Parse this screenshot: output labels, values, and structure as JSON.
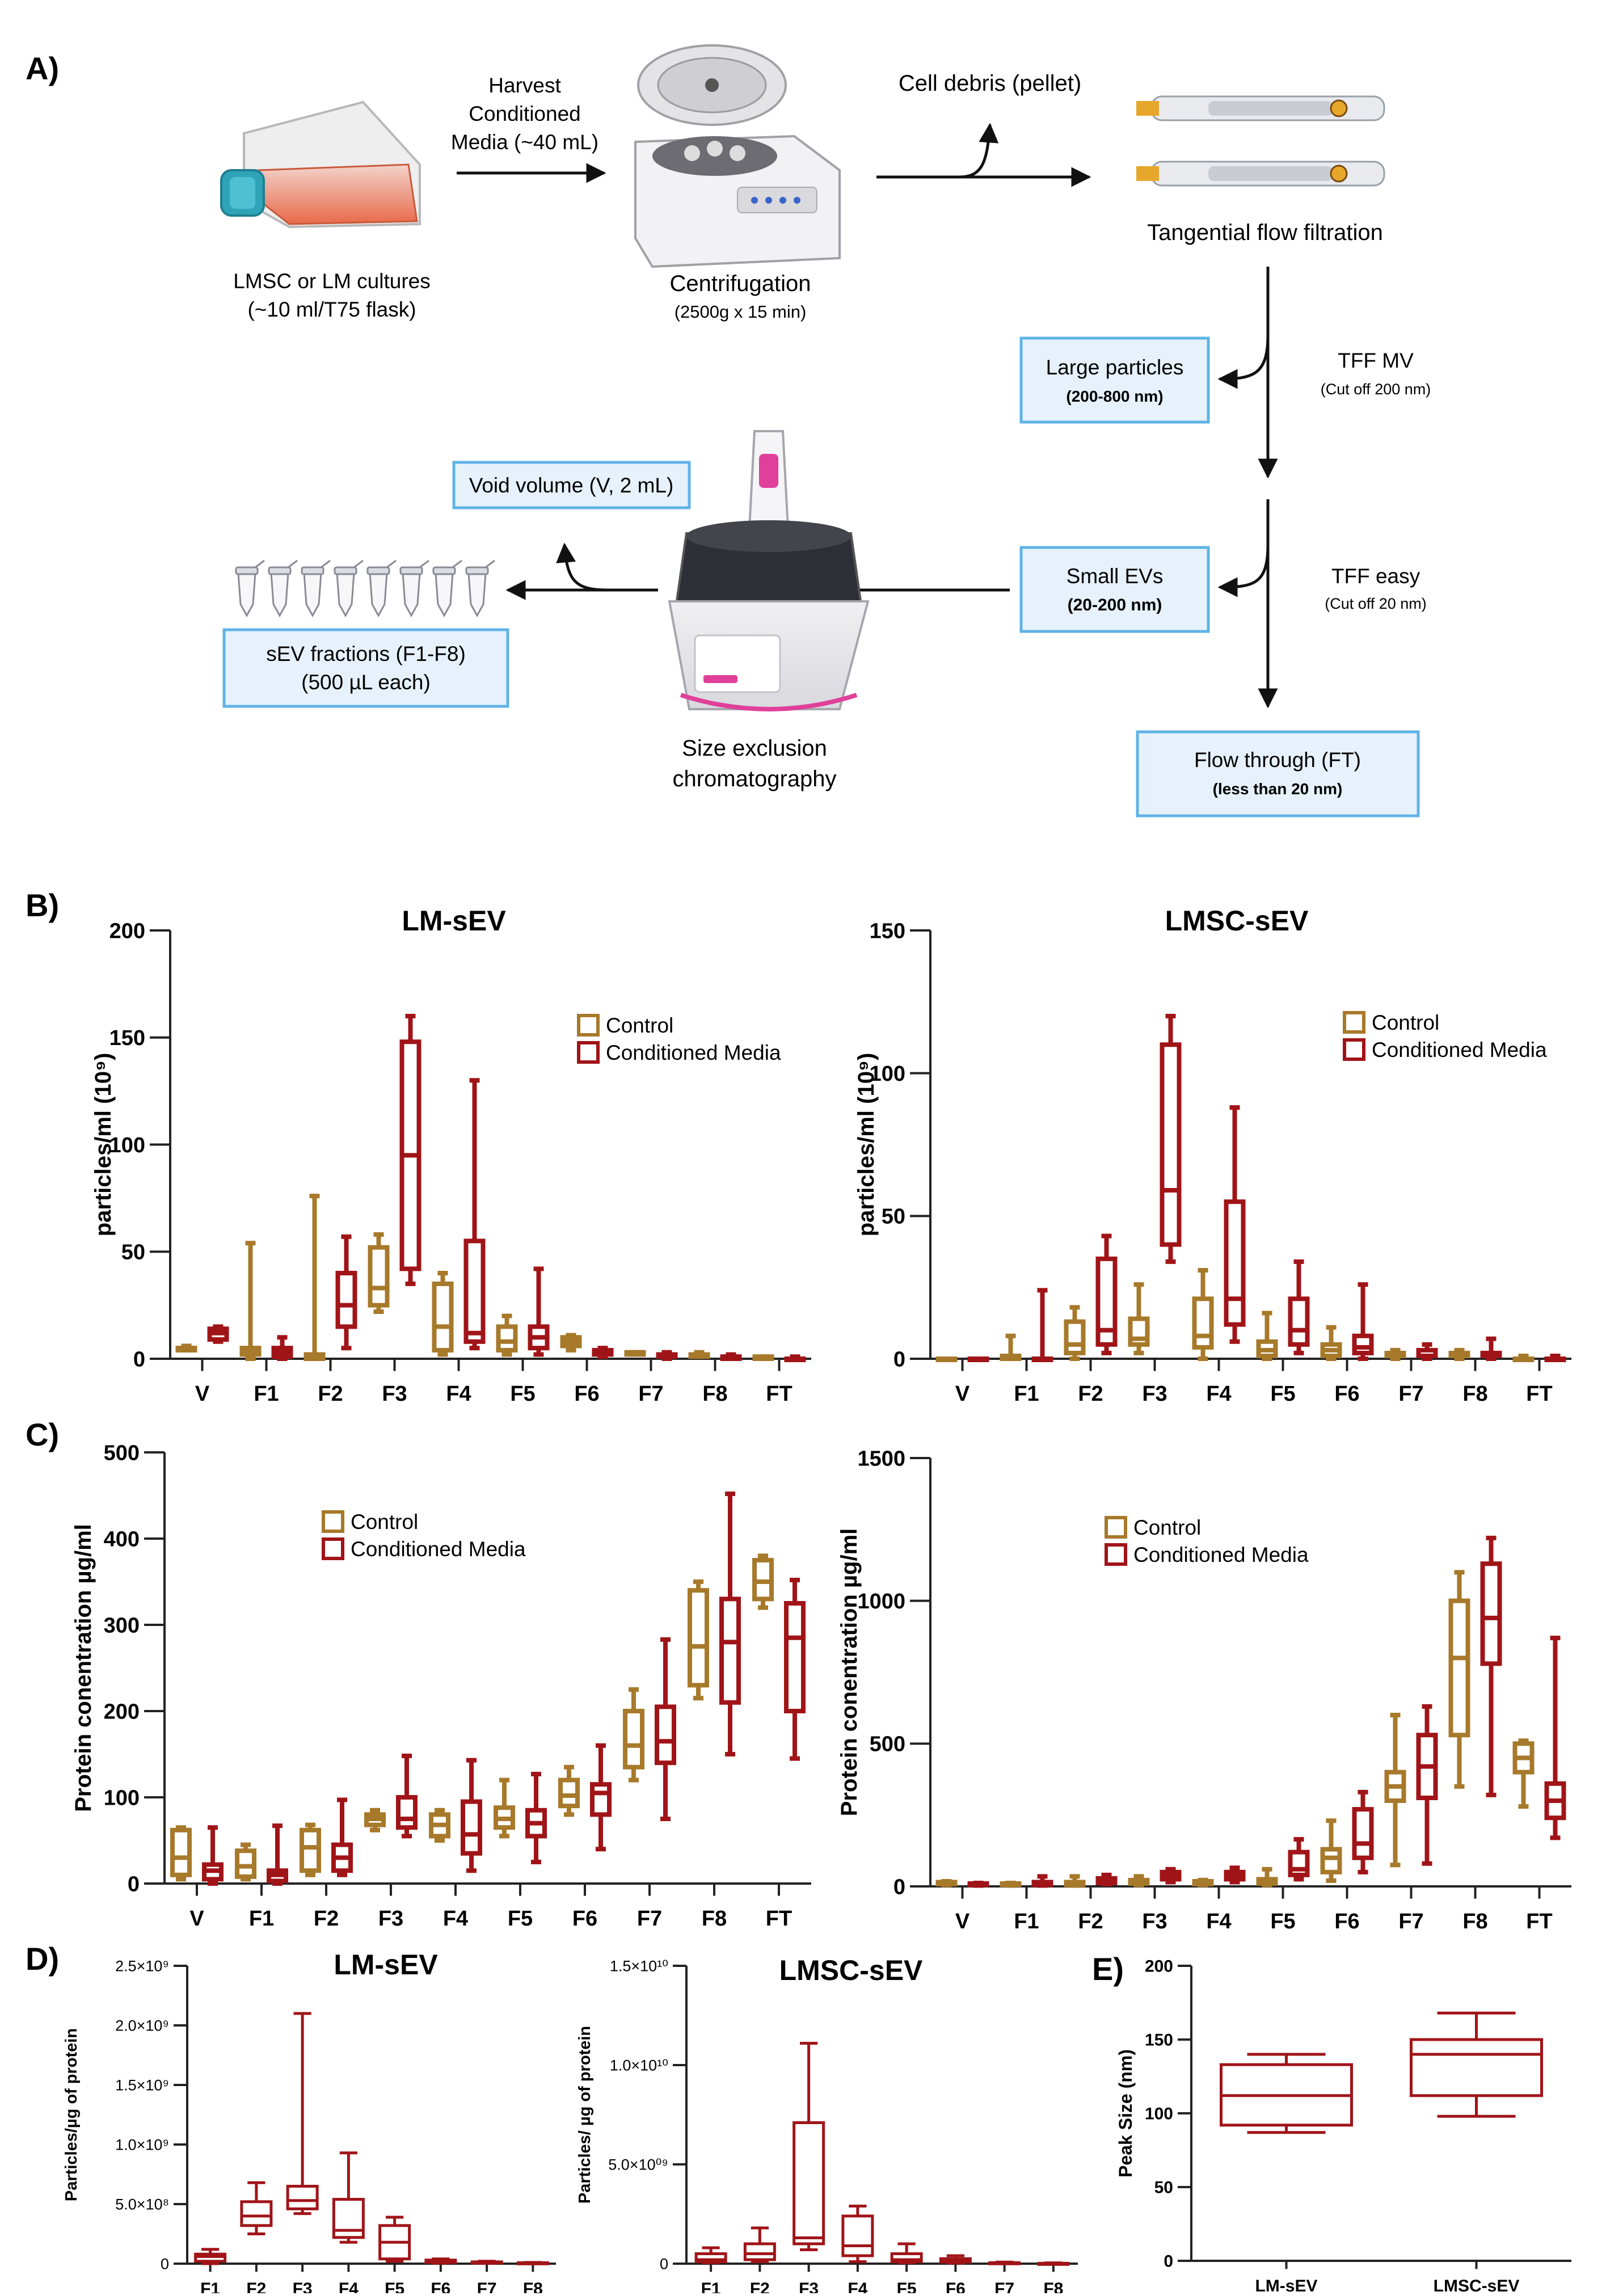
{
  "colors": {
    "control": "#A7792A",
    "conditioned": "#A01418",
    "box_border": "#5FB3E6",
    "box_fill": "#E7F1FB",
    "axis": "#222222"
  },
  "panel_labels": {
    "a": "A)",
    "b": "B)",
    "c": "C)",
    "d": "D)",
    "e": "E)"
  },
  "workflow": {
    "flask_caption": [
      "LMSC or LM cultures",
      "(~10 ml/T75 flask)"
    ],
    "harvest_label": [
      "Harvest",
      "Conditioned",
      "Media (~40 mL)"
    ],
    "centrifuge_caption": "Centrifugation",
    "centrifuge_params": "(2500g x 15 min)",
    "debris_label": "Cell debris (pellet)",
    "tff_caption": "Tangential flow filtration",
    "large_particles": {
      "title": "Large particles",
      "size": "(200-800 nm)"
    },
    "tff_mv": {
      "title": "TFF MV",
      "cutoff": "(Cut off 200 nm)"
    },
    "small_evs": {
      "title": "Small EVs",
      "size": "(20-200 nm)"
    },
    "tff_easy": {
      "title": "TFF easy",
      "cutoff": "(Cut off 20 nm)"
    },
    "flow_through": {
      "title": "Flow through (FT)",
      "size": "(less than 20 nm)"
    },
    "void_volume": "Void volume (V, 2 mL)",
    "sec_caption": [
      "Size exclusion",
      "chromatography"
    ],
    "fractions_box": [
      "sEV fractions (F1-F8)",
      "(500 µL each)"
    ]
  },
  "legend": {
    "control": "Control",
    "conditioned": "Conditioned Media"
  },
  "chart_data": [
    {
      "id": "B_LM",
      "type": "box",
      "title": "LM-sEV",
      "ylabel": "particles/ml (10⁹)",
      "ylim": [
        0,
        200
      ],
      "yticks": [
        0,
        50,
        100,
        150,
        200
      ],
      "categories": [
        "V",
        "F1",
        "F2",
        "F3",
        "F4",
        "F5",
        "F6",
        "F7",
        "F8",
        "FT"
      ],
      "series": [
        {
          "name": "Control",
          "boxes": [
            [
              4,
              4,
              5,
              5,
              6
            ],
            [
              0,
              2,
              4,
              5,
              54
            ],
            [
              0,
              0,
              1,
              2,
              76
            ],
            [
              22,
              25,
              33,
              52,
              58
            ],
            [
              2,
              4,
              15,
              35,
              40
            ],
            [
              2,
              4,
              8,
              15,
              20
            ],
            [
              4,
              6,
              8,
              10,
              11
            ],
            [
              2,
              2,
              3,
              3,
              3
            ],
            [
              1,
              1,
              2,
              2,
              3
            ],
            [
              0,
              0,
              0,
              1,
              1
            ]
          ]
        },
        {
          "name": "Conditioned Media",
          "boxes": [
            [
              8,
              9,
              12,
              14,
              15
            ],
            [
              0,
              1,
              3,
              5,
              10
            ],
            [
              5,
              15,
              25,
              40,
              57
            ],
            [
              35,
              42,
              95,
              148,
              160
            ],
            [
              5,
              8,
              12,
              55,
              130
            ],
            [
              2,
              5,
              10,
              15,
              42
            ],
            [
              1,
              2,
              3,
              4,
              5
            ],
            [
              0,
              1,
              1,
              2,
              3
            ],
            [
              0,
              0,
              1,
              1,
              2
            ],
            [
              0,
              0,
              0,
              0,
              1
            ]
          ]
        }
      ]
    },
    {
      "id": "B_LMSC",
      "type": "box",
      "title": "LMSC-sEV",
      "ylabel": "particles/ml (10⁹)",
      "ylim": [
        0,
        150
      ],
      "yticks": [
        0,
        50,
        100,
        150
      ],
      "categories": [
        "V",
        "F1",
        "F2",
        "F3",
        "F4",
        "F5",
        "F6",
        "F7",
        "F8",
        "FT"
      ],
      "series": [
        {
          "name": "Control",
          "boxes": [
            [
              0,
              0,
              0,
              0,
              0
            ],
            [
              0,
              0,
              0,
              1,
              8
            ],
            [
              0,
              2,
              5,
              13,
              18
            ],
            [
              2,
              5,
              7,
              14,
              26
            ],
            [
              0,
              4,
              8,
              21,
              31
            ],
            [
              0,
              1,
              3,
              6,
              16
            ],
            [
              0,
              1,
              3,
              5,
              11
            ],
            [
              0,
              1,
              1,
              2,
              3
            ],
            [
              0,
              1,
              1,
              2,
              3
            ],
            [
              0,
              0,
              0,
              0,
              1
            ]
          ]
        },
        {
          "name": "Conditioned Media",
          "boxes": [
            [
              0,
              0,
              0,
              0,
              0
            ],
            [
              0,
              0,
              0,
              0,
              24
            ],
            [
              2,
              5,
              10,
              35,
              43
            ],
            [
              34,
              40,
              59,
              110,
              120
            ],
            [
              6,
              12,
              21,
              55,
              88
            ],
            [
              2,
              5,
              10,
              21,
              34
            ],
            [
              0,
              2,
              4,
              8,
              26
            ],
            [
              0,
              1,
              1,
              3,
              5
            ],
            [
              0,
              1,
              1,
              2,
              7
            ],
            [
              0,
              0,
              0,
              0,
              1
            ]
          ]
        }
      ]
    },
    {
      "id": "C_LM",
      "type": "box",
      "title": "",
      "ylabel": "Protein conentration µg/ml",
      "ylim": [
        0,
        500
      ],
      "yticks": [
        0,
        100,
        200,
        300,
        400,
        500
      ],
      "categories": [
        "V",
        "F1",
        "F2",
        "F3",
        "F4",
        "F5",
        "F6",
        "F7",
        "F8",
        "FT"
      ],
      "series": [
        {
          "name": "Control",
          "boxes": [
            [
              5,
              10,
              30,
              62,
              65
            ],
            [
              5,
              8,
              20,
              38,
              45
            ],
            [
              10,
              15,
              42,
              62,
              68
            ],
            [
              62,
              68,
              75,
              80,
              85
            ],
            [
              50,
              55,
              68,
              80,
              85
            ],
            [
              55,
              65,
              75,
              88,
              120
            ],
            [
              80,
              90,
              102,
              120,
              135
            ],
            [
              120,
              135,
              160,
              200,
              225
            ],
            [
              215,
              230,
              275,
              340,
              350
            ],
            [
              320,
              330,
              350,
              375,
              380
            ]
          ]
        },
        {
          "name": "Conditioned Media",
          "boxes": [
            [
              0,
              5,
              15,
              22,
              65
            ],
            [
              0,
              3,
              10,
              15,
              67
            ],
            [
              10,
              15,
              30,
              45,
              97
            ],
            [
              55,
              65,
              75,
              100,
              148
            ],
            [
              15,
              35,
              57,
              95,
              143
            ],
            [
              25,
              55,
              70,
              85,
              127
            ],
            [
              40,
              80,
              105,
              115,
              160
            ],
            [
              75,
              140,
              165,
              205,
              283
            ],
            [
              150,
              210,
              280,
              330,
              452
            ],
            [
              145,
              200,
              285,
              325,
              352
            ]
          ]
        }
      ]
    },
    {
      "id": "C_LMSC",
      "type": "box",
      "title": "",
      "ylabel": "Protein conentration µg/ml",
      "ylim": [
        0,
        1500
      ],
      "yticks": [
        0,
        500,
        1000,
        1500
      ],
      "categories": [
        "V",
        "F1",
        "F2",
        "F3",
        "F4",
        "F5",
        "F6",
        "F7",
        "F8",
        "FT"
      ],
      "series": [
        {
          "name": "Control",
          "boxes": [
            [
              5,
              8,
              12,
              15,
              18
            ],
            [
              3,
              5,
              8,
              10,
              12
            ],
            [
              3,
              5,
              10,
              15,
              35
            ],
            [
              5,
              10,
              15,
              22,
              35
            ],
            [
              5,
              8,
              12,
              18,
              22
            ],
            [
              5,
              10,
              15,
              25,
              60
            ],
            [
              20,
              50,
              100,
              130,
              230
            ],
            [
              75,
              300,
              350,
              400,
              600
            ],
            [
              350,
              530,
              800,
              1000,
              1100
            ],
            [
              280,
              400,
              450,
              500,
              510
            ]
          ]
        },
        {
          "name": "Conditioned Media",
          "boxes": [
            [
              3,
              5,
              8,
              10,
              12
            ],
            [
              3,
              5,
              10,
              15,
              35
            ],
            [
              8,
              12,
              20,
              28,
              40
            ],
            [
              15,
              25,
              35,
              50,
              60
            ],
            [
              15,
              25,
              35,
              50,
              65
            ],
            [
              25,
              40,
              60,
              120,
              165
            ],
            [
              50,
              100,
              150,
              270,
              330
            ],
            [
              80,
              310,
              420,
              530,
              630
            ],
            [
              320,
              780,
              940,
              1130,
              1220
            ],
            [
              170,
              240,
              300,
              360,
              870
            ]
          ]
        }
      ]
    },
    {
      "id": "D_LM",
      "type": "box",
      "title": "LM-sEV",
      "ylabel": "Particles/µg of protein",
      "ylim": [
        0,
        2500000000.0
      ],
      "yticks": [
        0,
        500000000.0,
        1000000000.0,
        1500000000.0,
        2000000000.0,
        2500000000.0
      ],
      "ytick_labels": [
        "0",
        "5.0×10⁸",
        "1.0×10⁹",
        "1.5×10⁹",
        "2.0×10⁹",
        "2.5×10⁹"
      ],
      "categories": [
        "F1",
        "F2",
        "F3",
        "F4",
        "F5",
        "F6",
        "F7",
        "F8"
      ],
      "series": [
        {
          "name": "LM-sEV",
          "boxes": [
            [
              0,
              20000000.0,
              60000000.0,
              80000000.0,
              120000000.0
            ],
            [
              250000000.0,
              320000000.0,
              400000000.0,
              520000000.0,
              680000000.0
            ],
            [
              420000000.0,
              460000000.0,
              530000000.0,
              650000000.0,
              2100000000.0
            ],
            [
              180000000.0,
              220000000.0,
              280000000.0,
              540000000.0,
              930000000.0
            ],
            [
              20000000.0,
              40000000.0,
              180000000.0,
              320000000.0,
              390000000.0
            ],
            [
              5000000.0,
              10000000.0,
              20000000.0,
              30000000.0,
              40000000.0
            ],
            [
              3000000.0,
              5000000.0,
              10000000.0,
              15000000.0,
              20000000.0
            ],
            [
              1000000.0,
              3000000.0,
              5000000.0,
              8000000.0,
              10000000.0
            ]
          ]
        }
      ]
    },
    {
      "id": "D_LMSC",
      "type": "box",
      "title": "LMSC-sEV",
      "ylabel": "Particles/ µg of protein",
      "ylim": [
        0,
        15000000000.0
      ],
      "yticks": [
        0,
        5000000000.0,
        10000000000.0,
        15000000000.0
      ],
      "ytick_labels": [
        "0",
        "5.0×10⁰⁹",
        "1.0×10¹⁰",
        "1.5×10¹⁰"
      ],
      "categories": [
        "F1",
        "F2",
        "F3",
        "F4",
        "F5",
        "F6",
        "F7",
        "F8"
      ],
      "series": [
        {
          "name": "LMSC-sEV",
          "boxes": [
            [
              50000000.0,
              100000000.0,
              200000000.0,
              500000000.0,
              800000000.0
            ],
            [
              100000000.0,
              200000000.0,
              500000000.0,
              1000000000.0,
              1800000000.0
            ],
            [
              700000000.0,
              1000000000.0,
              1300000000.0,
              7100000000.0,
              11100000000.0
            ],
            [
              100000000.0,
              400000000.0,
              900000000.0,
              2400000000.0,
              2900000000.0
            ],
            [
              50000000.0,
              100000000.0,
              200000000.0,
              500000000.0,
              1000000000.0
            ],
            [
              30000000.0,
              80000000.0,
              150000000.0,
              250000000.0,
              400000000.0
            ],
            [
              5000000.0,
              10000000.0,
              30000000.0,
              50000000.0,
              80000000.0
            ],
            [
              1000000.0,
              5000000.0,
              10000000.0,
              20000000.0,
              40000000.0
            ]
          ]
        }
      ]
    },
    {
      "id": "E",
      "type": "box",
      "title": "",
      "ylabel": "Peak Size (nm)",
      "ylim": [
        0,
        200
      ],
      "yticks": [
        0,
        50,
        100,
        150,
        200
      ],
      "categories": [
        "LM-sEV",
        "LMSC-sEV"
      ],
      "series": [
        {
          "name": "Peak Size",
          "boxes": [
            [
              87,
              92,
              112,
              133,
              140
            ],
            [
              98,
              112,
              140,
              150,
              168
            ]
          ]
        }
      ]
    }
  ]
}
